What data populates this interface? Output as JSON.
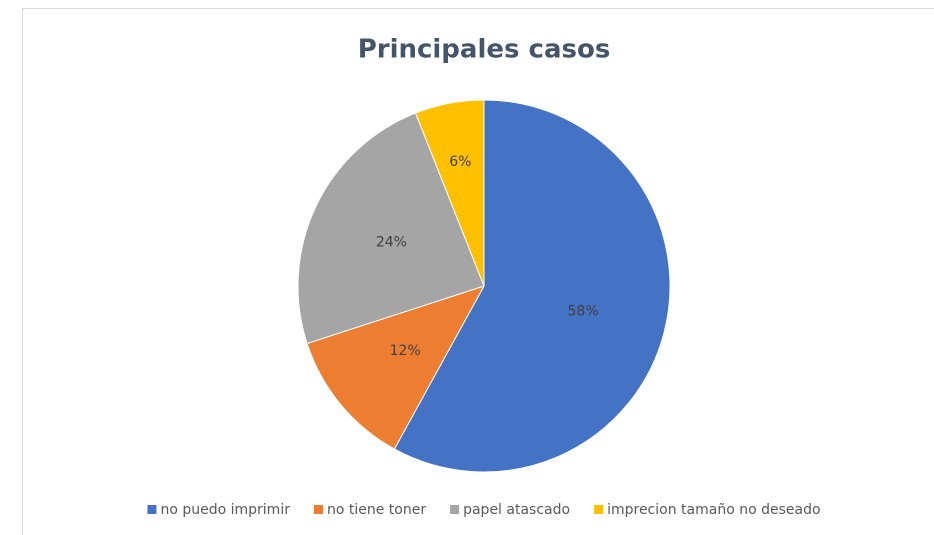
{
  "chart_data": {
    "type": "pie",
    "title": "Principales casos",
    "categories": [
      "no puedo imprimir",
      "no tiene toner",
      "papel atascado",
      "imprecion tamaño no deseado"
    ],
    "values": [
      58,
      12,
      24,
      6
    ],
    "value_labels": [
      "58%",
      "12%",
      "24%",
      "6%"
    ],
    "colors": [
      "#4472c4",
      "#ed7d31",
      "#a5a5a5",
      "#ffc000"
    ],
    "legend": "bottom"
  }
}
